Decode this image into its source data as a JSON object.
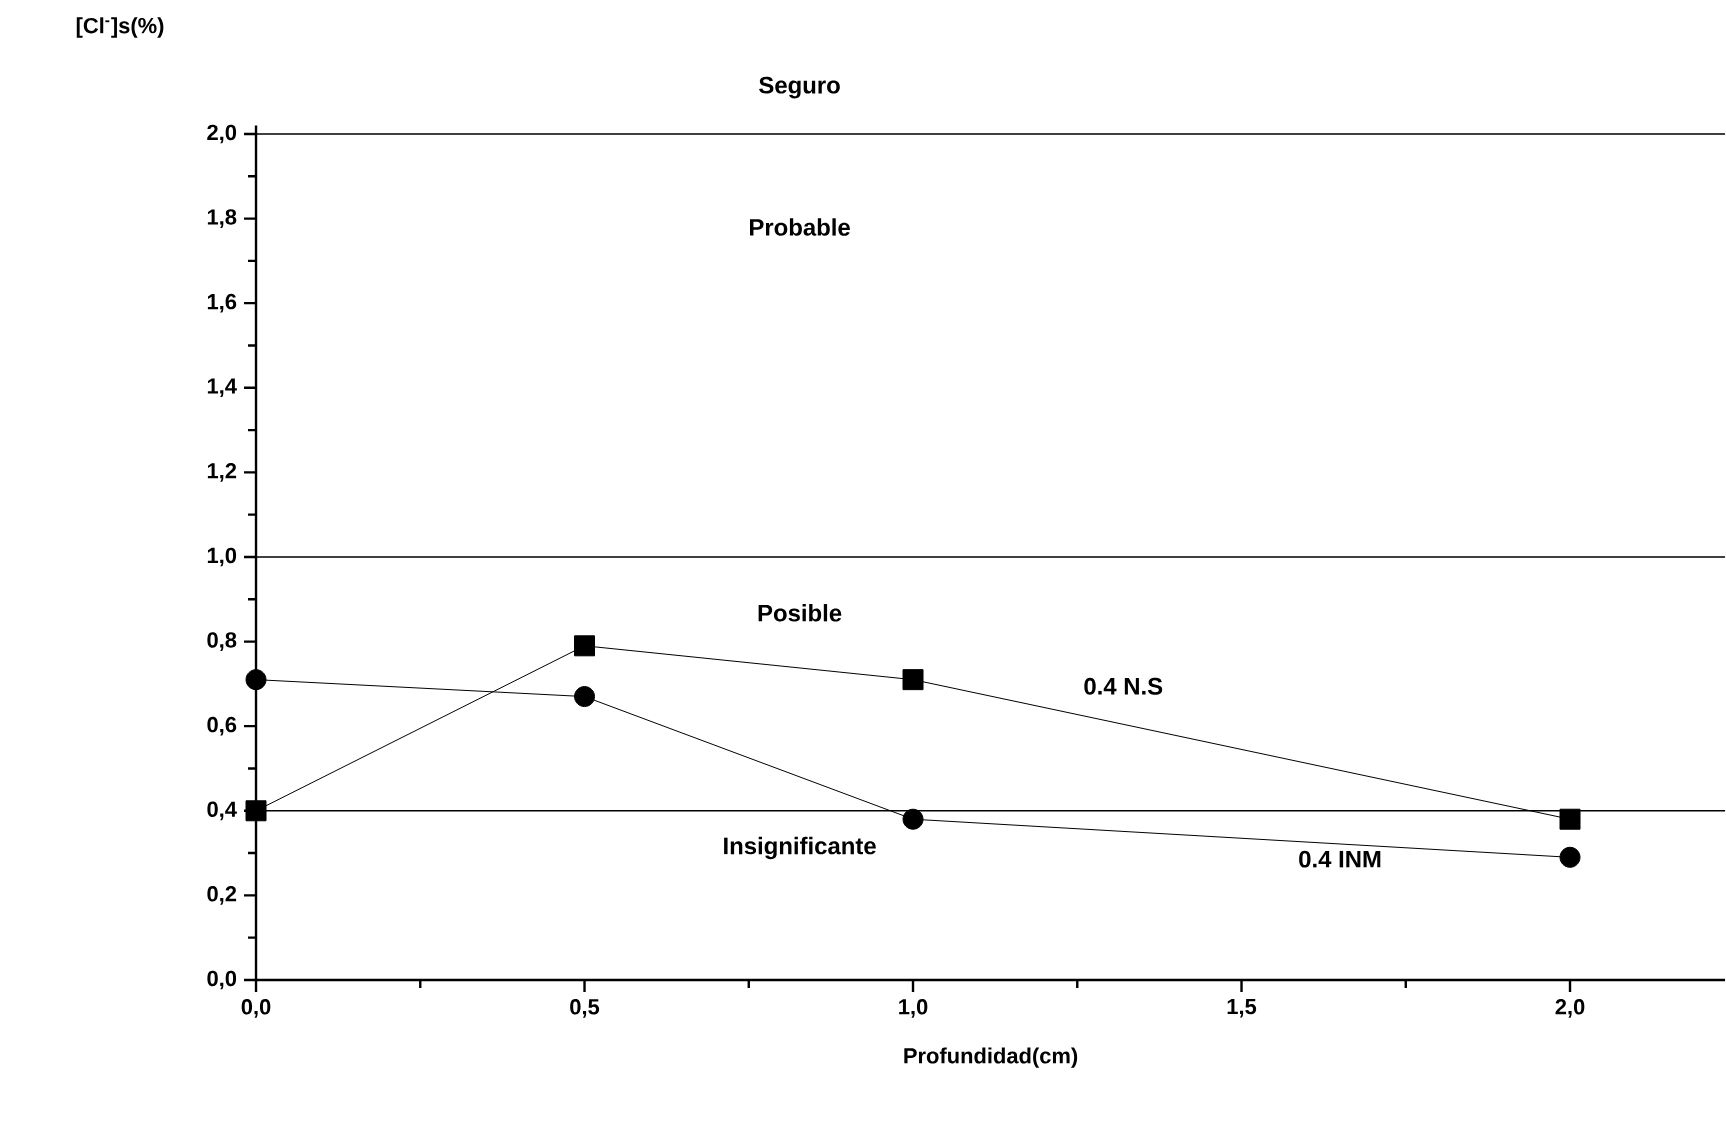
{
  "chart_data": {
    "type": "line",
    "xlabel": "Profundidad(cm)",
    "ylabel": "[Cl$^{-}$]s(%)",
    "x": [
      0,
      0.5,
      1.0,
      2.0
    ],
    "series": [
      {
        "name": "0.4 N.S",
        "color": "#000000",
        "marker": "square",
        "values": [
          0.4,
          0.79,
          0.71,
          0.38
        ]
      },
      {
        "name": "0.4 INM",
        "color": "#000000",
        "marker": "circle",
        "values": [
          0.71,
          0.67,
          0.38,
          0.29
        ]
      }
    ],
    "xlim": [
      0,
      2.236
    ],
    "ylim": [
      0,
      2.02
    ],
    "xticks": [
      {
        "value": 0,
        "label": "0,0"
      },
      {
        "value": 0.5,
        "label": "0,5"
      },
      {
        "value": 1.0,
        "label": "1,0"
      },
      {
        "value": 1.5,
        "label": "1,5"
      },
      {
        "value": 2.0,
        "label": "2,0"
      }
    ],
    "yticks": [
      {
        "value": 0,
        "label": "0,0"
      },
      {
        "value": 0.2,
        "label": "0,2"
      },
      {
        "value": 0.4,
        "label": "0,4"
      },
      {
        "value": 0.6,
        "label": "0,6"
      },
      {
        "value": 0.8,
        "label": "0,8"
      },
      {
        "value": 1.0,
        "label": "1,0"
      },
      {
        "value": 1.2,
        "label": "1,2"
      },
      {
        "value": 1.4,
        "label": "1,4"
      },
      {
        "value": 1.6,
        "label": "1,6"
      },
      {
        "value": 1.8,
        "label": "1,8"
      },
      {
        "value": 2.0,
        "label": "2,0"
      }
    ],
    "ref_lines": [
      {
        "axis": "y",
        "value": 0.4,
        "color": "#000000"
      },
      {
        "axis": "y",
        "value": 1.0,
        "color": "#000000"
      },
      {
        "axis": "y",
        "value": 2.0,
        "color": "#000000"
      }
    ],
    "annotations": [
      "Seguro",
      "Probable",
      "Posible",
      "Insignificante"
    ],
    "grid": false
  }
}
